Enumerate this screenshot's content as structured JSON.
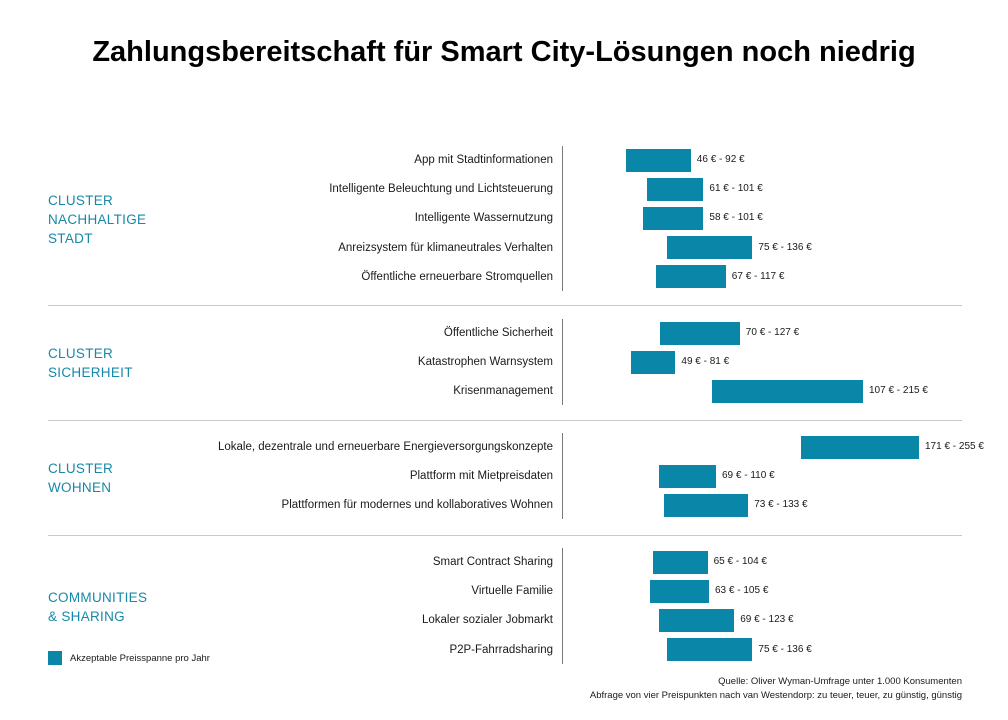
{
  "colors": {
    "bar": "#0a86a8",
    "cluster_text": "#1788a8",
    "text": "#1a1a1a"
  },
  "chart_data": {
    "type": "bar",
    "orientation": "horizontal-range",
    "title": "Zahlungsbereitschaft für Smart City-Lösungen noch niedrig",
    "xlim": [
      0,
      270
    ],
    "groups": [
      {
        "label": "CLUSTER\nNACHHALTIGE\nSTADT",
        "items": [
          {
            "label": "App mit Stadtinformationen",
            "low": 46,
            "high": 92,
            "text": "46 € - 92 €"
          },
          {
            "label": "Intelligente Beleuchtung und Lichtsteuerung",
            "low": 61,
            "high": 101,
            "text": "61 € - 101 €"
          },
          {
            "label": "Intelligente Wassernutzung",
            "low": 58,
            "high": 101,
            "text": "58 € - 101 €"
          },
          {
            "label": "Anreizsystem für klimaneutrales Verhalten",
            "low": 75,
            "high": 136,
            "text": "75 € - 136 €"
          },
          {
            "label": "Öffentliche erneuerbare Stromquellen",
            "low": 67,
            "high": 117,
            "text": "67 € - 117 €"
          }
        ]
      },
      {
        "label": "CLUSTER\nSICHERHEIT",
        "items": [
          {
            "label": "Öffentliche Sicherheit",
            "low": 70,
            "high": 127,
            "text": "70 € - 127 €"
          },
          {
            "label": "Katastrophen Warnsystem",
            "low": 49,
            "high": 81,
            "text": "49 € - 81 €"
          },
          {
            "label": "Krisenmanagement",
            "low": 107,
            "high": 215,
            "text": "107 € - 215 €"
          }
        ]
      },
      {
        "label": "CLUSTER\nWOHNEN",
        "items": [
          {
            "label": "Lokale, dezentrale und erneuerbare Energieversorgungskonzepte",
            "low": 171,
            "high": 255,
            "text": "171 € - 255 €"
          },
          {
            "label": "Plattform mit Mietpreisdaten",
            "low": 69,
            "high": 110,
            "text": "69 € - 110 €"
          },
          {
            "label": "Plattformen für modernes und kollaboratives Wohnen",
            "low": 73,
            "high": 133,
            "text": "73 € - 133 €"
          }
        ]
      },
      {
        "label": "COMMUNITIES\n& SHARING",
        "items": [
          {
            "label": "Smart Contract Sharing",
            "low": 65,
            "high": 104,
            "text": "65 € - 104 €"
          },
          {
            "label": "Virtuelle Familie",
            "low": 63,
            "high": 105,
            "text": "63 € - 105 €"
          },
          {
            "label": "Lokaler sozialer Jobmarkt",
            "low": 69,
            "high": 123,
            "text": "69 € - 123 €"
          },
          {
            "label": "P2P-Fahrradsharing",
            "low": 75,
            "high": 136,
            "text": "75 € - 136 €"
          }
        ]
      }
    ],
    "legend": {
      "label": "Akzeptable Preisspanne pro Jahr",
      "placement": "bottom-left"
    }
  },
  "source": {
    "line1": "Quelle: Oliver Wyman-Umfrage unter 1.000 Konsumenten",
    "line2": "Abfrage von vier Preispunkten nach van Westendorp: zu teuer, teuer, zu günstig, günstig"
  }
}
